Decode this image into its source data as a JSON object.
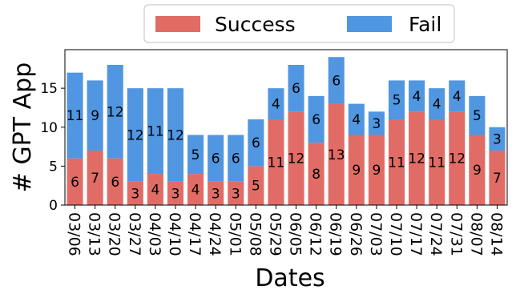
{
  "chart_data": {
    "type": "bar",
    "stacked": true,
    "title": "",
    "xlabel": "Dates",
    "ylabel": "# GPT App",
    "ylim": [
      0,
      19.95
    ],
    "yticks": [
      0,
      5,
      10,
      15
    ],
    "grid": false,
    "legend_position": "top-center",
    "categories": [
      "03/06",
      "03/13",
      "03/20",
      "03/27",
      "04/03",
      "04/10",
      "04/17",
      "04/24",
      "05/01",
      "05/08",
      "05/29",
      "06/05",
      "06/12",
      "06/19",
      "06/26",
      "07/03",
      "07/10",
      "07/17",
      "07/24",
      "07/31",
      "08/07",
      "08/14"
    ],
    "series": [
      {
        "name": "Success",
        "color": "#e06c65",
        "values": [
          6,
          7,
          6,
          3,
          4,
          3,
          4,
          3,
          3,
          5,
          11,
          12,
          8,
          13,
          9,
          9,
          11,
          12,
          11,
          12,
          9,
          7
        ]
      },
      {
        "name": "Fail",
        "color": "#5096e0",
        "values": [
          11,
          9,
          12,
          12,
          11,
          12,
          5,
          6,
          6,
          6,
          4,
          6,
          6,
          6,
          4,
          3,
          5,
          4,
          4,
          4,
          5,
          3
        ]
      }
    ]
  }
}
